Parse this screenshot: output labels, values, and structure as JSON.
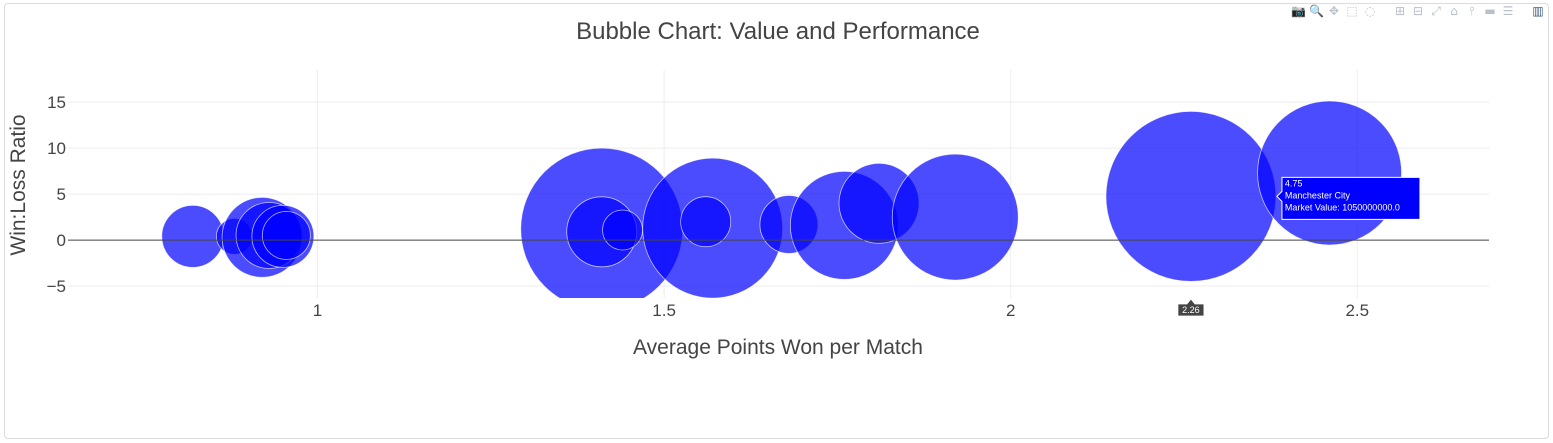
{
  "toolbar": {
    "buttons": [
      {
        "name": "camera-icon",
        "glyph": "📷"
      },
      {
        "name": "zoom-icon",
        "glyph": "🔍"
      },
      {
        "name": "pan-icon",
        "glyph": "✥"
      },
      {
        "name": "box-select-icon",
        "glyph": "⬚"
      },
      {
        "name": "lasso-select-icon",
        "glyph": "◌"
      },
      {
        "name": "sep"
      },
      {
        "name": "zoom-in-icon",
        "glyph": "⊞"
      },
      {
        "name": "zoom-out-icon",
        "glyph": "⊟"
      },
      {
        "name": "autoscale-icon",
        "glyph": "⤢"
      },
      {
        "name": "reset-axes-icon",
        "glyph": "⌂"
      },
      {
        "name": "spike-lines-icon",
        "glyph": "⫯"
      },
      {
        "name": "hover-closest-icon",
        "glyph": "▬"
      },
      {
        "name": "hover-compare-icon",
        "glyph": "☰"
      },
      {
        "name": "sep"
      },
      {
        "name": "plotly-logo-icon",
        "glyph": "▥"
      }
    ]
  },
  "chart_data": {
    "type": "scatter",
    "title": "Bubble Chart: Value and Performance",
    "xlabel": "Average Points Won per Match",
    "ylabel": "Win:Loss Ratio",
    "xlim": [
      0.64,
      2.69
    ],
    "ylim": [
      -6.3,
      18.5
    ],
    "xticks": [
      1,
      1.5,
      2,
      2.5
    ],
    "xtick_labels": [
      "1",
      "1.5",
      "2",
      "2.5"
    ],
    "yticks": [
      -5,
      0,
      5,
      10,
      15
    ],
    "ytick_labels": [
      "−5",
      "0",
      "5",
      "10",
      "15"
    ],
    "grid": true,
    "marker_color": "#0000ff",
    "points": [
      {
        "x": 0.82,
        "y": 0.4,
        "size": 62
      },
      {
        "x": 0.88,
        "y": 0.4,
        "size": 36
      },
      {
        "x": 0.92,
        "y": 0.3,
        "size": 80
      },
      {
        "x": 0.93,
        "y": 0.5,
        "size": 66
      },
      {
        "x": 0.95,
        "y": 0.4,
        "size": 62
      },
      {
        "x": 0.955,
        "y": 0.5,
        "size": 48
      },
      {
        "x": 1.41,
        "y": 1.2,
        "size": 162
      },
      {
        "x": 1.41,
        "y": 0.9,
        "size": 70
      },
      {
        "x": 1.44,
        "y": 1.1,
        "size": 40
      },
      {
        "x": 1.57,
        "y": 1.3,
        "size": 140
      },
      {
        "x": 1.56,
        "y": 2.0,
        "size": 50
      },
      {
        "x": 1.68,
        "y": 1.7,
        "size": 58
      },
      {
        "x": 1.76,
        "y": 1.6,
        "size": 108
      },
      {
        "x": 1.81,
        "y": 4.0,
        "size": 80
      },
      {
        "x": 1.92,
        "y": 2.5,
        "size": 126
      },
      {
        "x": 2.26,
        "y": 4.75,
        "size": 170
      },
      {
        "x": 2.46,
        "y": 7.3,
        "size": 144
      }
    ],
    "hover": {
      "x_label": "2.26",
      "y_value": "4.75",
      "team": "Manchester City",
      "market_value": "Market Value: 1050000000.0"
    }
  }
}
